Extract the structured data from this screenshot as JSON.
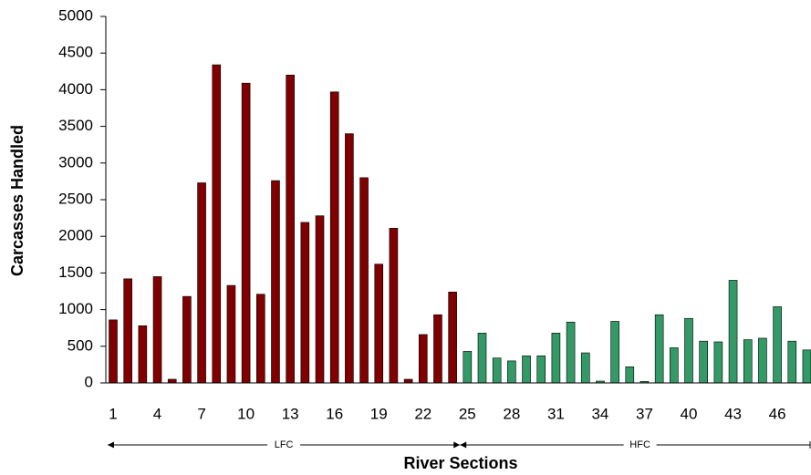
{
  "chart_data": {
    "type": "bar",
    "x_label": "River Sections",
    "y_label": "Carcasses Handled",
    "categories": [
      "1",
      null,
      null,
      "4",
      null,
      null,
      "7",
      null,
      null,
      "10",
      null,
      null,
      "13",
      null,
      null,
      "16",
      null,
      null,
      "19",
      null,
      null,
      "22",
      null,
      null,
      "25",
      null,
      null,
      "28",
      null,
      null,
      "31",
      null,
      null,
      "34",
      null,
      null,
      "37",
      null,
      null,
      "40",
      null,
      null,
      "43",
      null,
      null,
      "46",
      null,
      null
    ],
    "series": [
      {
        "name": "LFC",
        "color": "#800000",
        "values": [
          860,
          1420,
          780,
          1450,
          50,
          1180,
          2730,
          4340,
          1330,
          4090,
          1210,
          2760,
          4200,
          2190,
          2280,
          3970,
          3400,
          2800,
          1620,
          2110,
          50,
          660,
          930,
          1240,
          null,
          null,
          null,
          null,
          null,
          null,
          null,
          null,
          null,
          null,
          null,
          null,
          null,
          null,
          null,
          null,
          null,
          null,
          null,
          null,
          null,
          null,
          null,
          null
        ]
      },
      {
        "name": "HFC",
        "color": "#339966",
        "values": [
          null,
          null,
          null,
          null,
          null,
          null,
          null,
          null,
          null,
          null,
          null,
          null,
          null,
          null,
          null,
          null,
          null,
          null,
          null,
          null,
          null,
          null,
          null,
          null,
          430,
          680,
          340,
          300,
          370,
          370,
          680,
          830,
          410,
          25,
          840,
          220,
          20,
          930,
          480,
          880,
          570,
          560,
          1400,
          590,
          610,
          1040,
          570,
          450
        ]
      }
    ],
    "ylim": [
      0,
      5000
    ],
    "yticks": [
      0,
      500,
      1000,
      1500,
      2000,
      2500,
      3000,
      3500,
      4000,
      4500,
      5000
    ]
  }
}
